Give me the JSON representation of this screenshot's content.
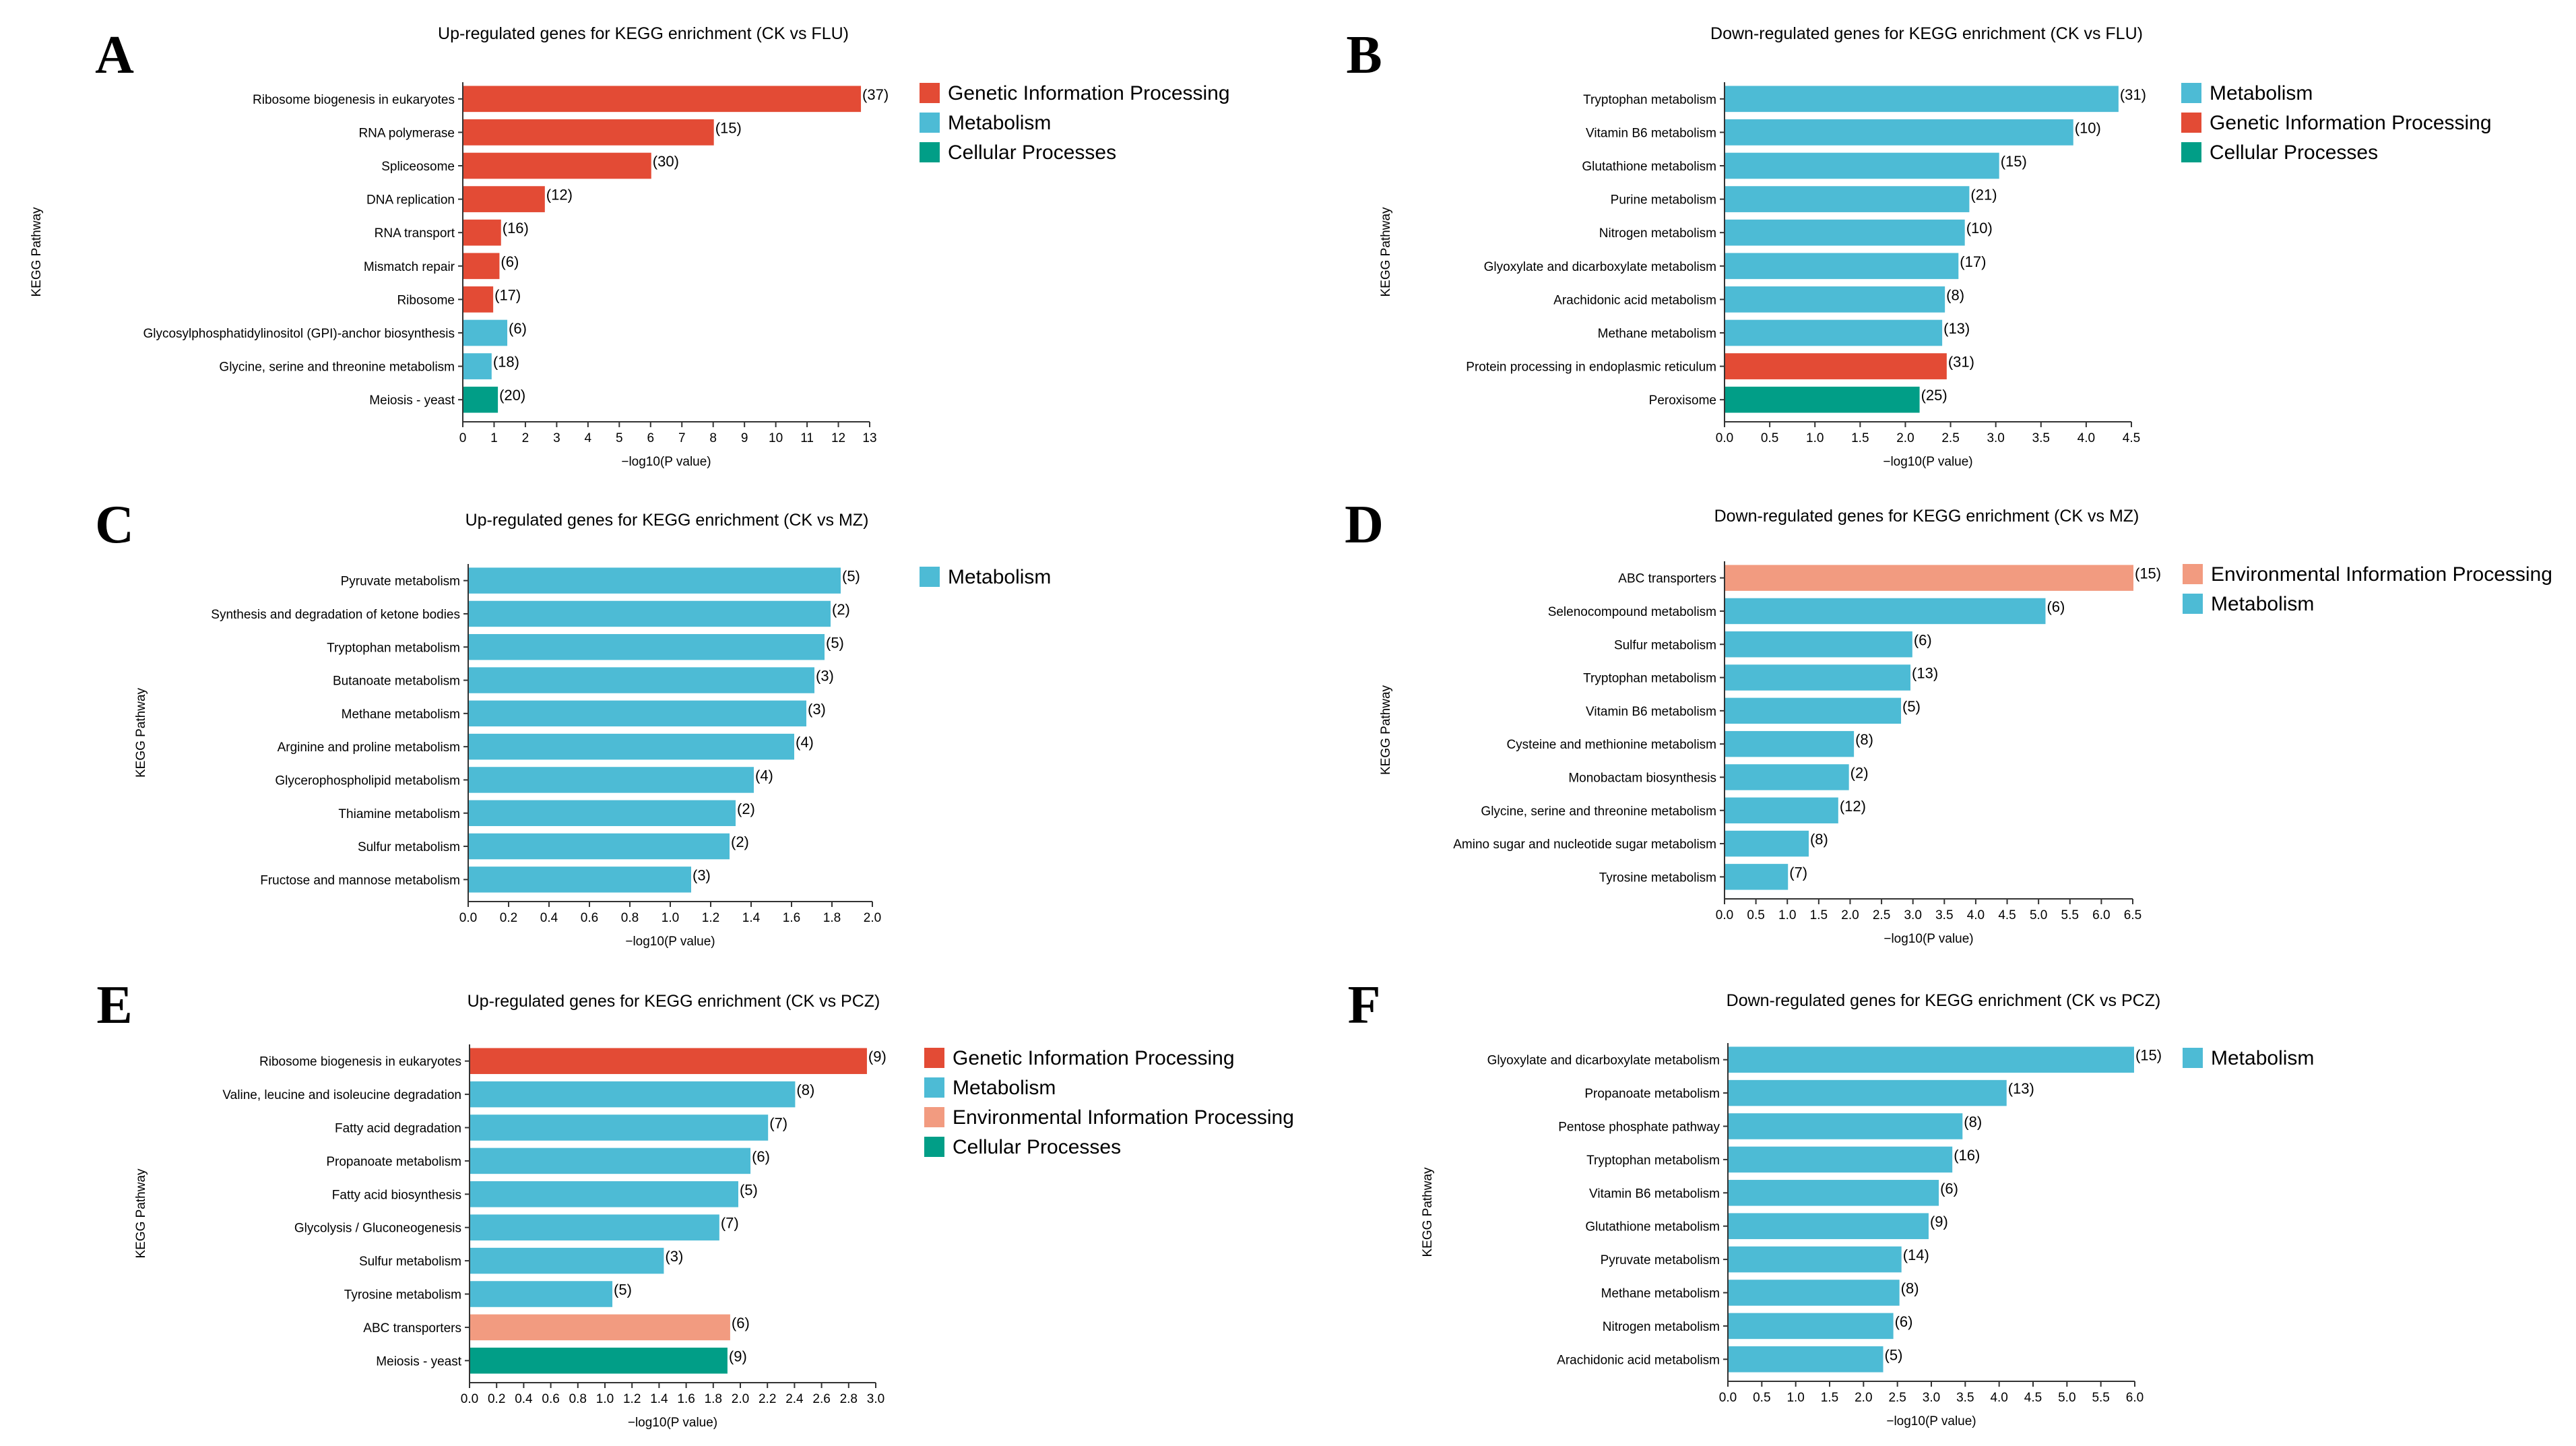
{
  "colors": {
    "Genetic Information Processing": "#e34b35",
    "Metabolism": "#4dbbd5",
    "Cellular Processes": "#019e87",
    "Environmental Information Processing": "#f29b80"
  },
  "chart_data": [
    {
      "type": "bar",
      "orientation": "horizontal",
      "letter": "A",
      "title": "Up-regulated genes for KEGG enrichment (CK vs FLU)",
      "xlabel": "−log10(P value)",
      "ylabel": "KEGG Pathway",
      "xlim": [
        0,
        13
      ],
      "ticks": [
        "0",
        "1",
        "2",
        "3",
        "4",
        "5",
        "6",
        "7",
        "8",
        "9",
        "10",
        "11",
        "12",
        "13"
      ],
      "legend": [
        "Genetic Information Processing",
        "Metabolism",
        "Cellular Processes"
      ],
      "bars": [
        {
          "label": "Ribosome biogenesis in eukaryotes",
          "value": 12.7,
          "count": "(37)",
          "group": "Genetic Information Processing"
        },
        {
          "label": "RNA polymerase",
          "value": 8.0,
          "count": "(15)",
          "group": "Genetic Information Processing"
        },
        {
          "label": "Spliceosome",
          "value": 6.0,
          "count": "(30)",
          "group": "Genetic Information Processing"
        },
        {
          "label": "DNA replication",
          "value": 2.6,
          "count": "(12)",
          "group": "Genetic Information Processing"
        },
        {
          "label": "RNA transport",
          "value": 1.2,
          "count": "(16)",
          "group": "Genetic Information Processing"
        },
        {
          "label": "Mismatch repair",
          "value": 1.15,
          "count": "(6)",
          "group": "Genetic Information Processing"
        },
        {
          "label": "Ribosome",
          "value": 0.95,
          "count": "(17)",
          "group": "Genetic Information Processing"
        },
        {
          "label": "Glycosylphosphatidylinositol (GPI)-anchor biosynthesis",
          "value": 1.4,
          "count": "(6)",
          "group": "Metabolism"
        },
        {
          "label": "Glycine, serine and threonine metabolism",
          "value": 0.9,
          "count": "(18)",
          "group": "Metabolism"
        },
        {
          "label": "Meiosis - yeast",
          "value": 1.1,
          "count": "(20)",
          "group": "Cellular Processes"
        }
      ]
    },
    {
      "type": "bar",
      "orientation": "horizontal",
      "letter": "B",
      "title": "Down-regulated genes for KEGG enrichment (CK vs FLU)",
      "xlabel": "−log10(P value)",
      "ylabel": "KEGG Pathway",
      "xlim": [
        0,
        4.5
      ],
      "ticks": [
        "0.0",
        "0.5",
        "1.0",
        "1.5",
        "2.0",
        "2.5",
        "3.0",
        "3.5",
        "4.0",
        "4.5"
      ],
      "legend": [
        "Metabolism",
        "Genetic Information Processing",
        "Cellular Processes"
      ],
      "bars": [
        {
          "label": "Tryptophan metabolism",
          "value": 4.35,
          "count": "(31)",
          "group": "Metabolism"
        },
        {
          "label": "Vitamin B6 metabolism",
          "value": 3.85,
          "count": "(10)",
          "group": "Metabolism"
        },
        {
          "label": "Glutathione metabolism",
          "value": 3.03,
          "count": "(15)",
          "group": "Metabolism"
        },
        {
          "label": "Purine metabolism",
          "value": 2.7,
          "count": "(21)",
          "group": "Metabolism"
        },
        {
          "label": "Nitrogen metabolism",
          "value": 2.65,
          "count": "(10)",
          "group": "Metabolism"
        },
        {
          "label": "Glyoxylate and dicarboxylate metabolism",
          "value": 2.58,
          "count": "(17)",
          "group": "Metabolism"
        },
        {
          "label": "Arachidonic acid metabolism",
          "value": 2.43,
          "count": "(8)",
          "group": "Metabolism"
        },
        {
          "label": "Methane metabolism",
          "value": 2.4,
          "count": "(13)",
          "group": "Metabolism"
        },
        {
          "label": "Protein processing in endoplasmic reticulum",
          "value": 2.45,
          "count": "(31)",
          "group": "Genetic Information Processing"
        },
        {
          "label": "Peroxisome",
          "value": 2.15,
          "count": "(25)",
          "group": "Cellular Processes"
        }
      ]
    },
    {
      "type": "bar",
      "orientation": "horizontal",
      "letter": "C",
      "title": "Up-regulated genes for KEGG enrichment (CK vs MZ)",
      "xlabel": "−log10(P value)",
      "ylabel": "KEGG Pathway",
      "xlim": [
        0,
        2.0
      ],
      "ticks": [
        "0.0",
        "0.2",
        "0.4",
        "0.6",
        "0.8",
        "1.0",
        "1.2",
        "1.4",
        "1.6",
        "1.8",
        "2.0"
      ],
      "legend": [
        "Metabolism"
      ],
      "bars": [
        {
          "label": "Pyruvate metabolism",
          "value": 1.84,
          "count": "(5)",
          "group": "Metabolism"
        },
        {
          "label": "Synthesis and degradation of ketone bodies",
          "value": 1.79,
          "count": "(2)",
          "group": "Metabolism"
        },
        {
          "label": "Tryptophan metabolism",
          "value": 1.76,
          "count": "(5)",
          "group": "Metabolism"
        },
        {
          "label": "Butanoate metabolism",
          "value": 1.71,
          "count": "(3)",
          "group": "Metabolism"
        },
        {
          "label": "Methane metabolism",
          "value": 1.67,
          "count": "(3)",
          "group": "Metabolism"
        },
        {
          "label": "Arginine and proline metabolism",
          "value": 1.61,
          "count": "(4)",
          "group": "Metabolism"
        },
        {
          "label": "Glycerophospholipid metabolism",
          "value": 1.41,
          "count": "(4)",
          "group": "Metabolism"
        },
        {
          "label": "Thiamine metabolism",
          "value": 1.32,
          "count": "(2)",
          "group": "Metabolism"
        },
        {
          "label": "Sulfur metabolism",
          "value": 1.29,
          "count": "(2)",
          "group": "Metabolism"
        },
        {
          "label": "Fructose and mannose metabolism",
          "value": 1.1,
          "count": "(3)",
          "group": "Metabolism"
        }
      ]
    },
    {
      "type": "bar",
      "orientation": "horizontal",
      "letter": "D",
      "title": "Down-regulated genes for KEGG enrichment (CK vs MZ)",
      "xlabel": "−log10(P value)",
      "ylabel": "KEGG Pathway",
      "xlim": [
        0,
        6.5
      ],
      "ticks": [
        "0.0",
        "0.5",
        "1.0",
        "1.5",
        "2.0",
        "2.5",
        "3.0",
        "3.5",
        "4.0",
        "4.5",
        "5.0",
        "5.5",
        "6.0",
        "6.5"
      ],
      "legend": [
        "Environmental Information Processing",
        "Metabolism"
      ],
      "bars": [
        {
          "label": "ABC transporters",
          "value": 6.5,
          "count": "(15)",
          "group": "Environmental Information Processing"
        },
        {
          "label": "Selenocompound metabolism",
          "value": 5.1,
          "count": "(6)",
          "group": "Metabolism"
        },
        {
          "label": "Sulfur metabolism",
          "value": 2.98,
          "count": "(6)",
          "group": "Metabolism"
        },
        {
          "label": "Tryptophan metabolism",
          "value": 2.95,
          "count": "(13)",
          "group": "Metabolism"
        },
        {
          "label": "Vitamin B6 metabolism",
          "value": 2.8,
          "count": "(5)",
          "group": "Metabolism"
        },
        {
          "label": "Cysteine and methionine metabolism",
          "value": 2.05,
          "count": "(8)",
          "group": "Metabolism"
        },
        {
          "label": "Monobactam biosynthesis",
          "value": 1.97,
          "count": "(2)",
          "group": "Metabolism"
        },
        {
          "label": "Glycine, serine and threonine metabolism",
          "value": 1.8,
          "count": "(12)",
          "group": "Metabolism"
        },
        {
          "label": "Amino sugar and nucleotide sugar metabolism",
          "value": 1.33,
          "count": "(8)",
          "group": "Metabolism"
        },
        {
          "label": "Tyrosine metabolism",
          "value": 1.0,
          "count": "(7)",
          "group": "Metabolism"
        }
      ]
    },
    {
      "type": "bar",
      "orientation": "horizontal",
      "letter": "E",
      "title": "Up-regulated genes for KEGG enrichment (CK vs PCZ)",
      "xlabel": "−log10(P value)",
      "ylabel": "KEGG Pathway",
      "xlim": [
        0,
        3.0
      ],
      "ticks": [
        "0.0",
        "0.2",
        "0.4",
        "0.6",
        "0.8",
        "1.0",
        "1.2",
        "1.4",
        "1.6",
        "1.8",
        "2.0",
        "2.2",
        "2.4",
        "2.6",
        "2.8",
        "3.0"
      ],
      "legend": [
        "Genetic Information Processing",
        "Metabolism",
        "Environmental Information Processing",
        "Cellular Processes"
      ],
      "bars": [
        {
          "label": "Ribosome biogenesis in eukaryotes",
          "value": 2.93,
          "count": "(9)",
          "group": "Genetic Information Processing"
        },
        {
          "label": "Valine, leucine and isoleucine degradation",
          "value": 2.4,
          "count": "(8)",
          "group": "Metabolism"
        },
        {
          "label": "Fatty acid degradation",
          "value": 2.2,
          "count": "(7)",
          "group": "Metabolism"
        },
        {
          "label": "Propanoate metabolism",
          "value": 2.07,
          "count": "(6)",
          "group": "Metabolism"
        },
        {
          "label": "Fatty acid biosynthesis",
          "value": 1.98,
          "count": "(5)",
          "group": "Metabolism"
        },
        {
          "label": "Glycolysis / Gluconeogenesis",
          "value": 1.84,
          "count": "(7)",
          "group": "Metabolism"
        },
        {
          "label": "Sulfur metabolism",
          "value": 1.43,
          "count": "(3)",
          "group": "Metabolism"
        },
        {
          "label": "Tyrosine metabolism",
          "value": 1.05,
          "count": "(5)",
          "group": "Metabolism"
        },
        {
          "label": "ABC transporters",
          "value": 1.92,
          "count": "(6)",
          "group": "Environmental Information Processing"
        },
        {
          "label": "Meiosis - yeast",
          "value": 1.9,
          "count": "(9)",
          "group": "Cellular Processes"
        }
      ]
    },
    {
      "type": "bar",
      "orientation": "horizontal",
      "letter": "F",
      "title": "Down-regulated genes for KEGG enrichment (CK vs PCZ)",
      "xlabel": "−log10(P value)",
      "ylabel": "KEGG Pathway",
      "xlim": [
        0,
        6.0
      ],
      "ticks": [
        "0.0",
        "0.5",
        "1.0",
        "1.5",
        "2.0",
        "2.5",
        "3.0",
        "3.5",
        "4.0",
        "4.5",
        "5.0",
        "5.5",
        "6.0"
      ],
      "legend": [
        "Metabolism"
      ],
      "bars": [
        {
          "label": "Glyoxylate and dicarboxylate metabolism",
          "value": 5.98,
          "count": "(15)",
          "group": "Metabolism"
        },
        {
          "label": "Propanoate metabolism",
          "value": 4.1,
          "count": "(13)",
          "group": "Metabolism"
        },
        {
          "label": "Pentose phosphate pathway",
          "value": 3.45,
          "count": "(8)",
          "group": "Metabolism"
        },
        {
          "label": "Tryptophan metabolism",
          "value": 3.3,
          "count": "(16)",
          "group": "Metabolism"
        },
        {
          "label": "Vitamin B6 metabolism",
          "value": 3.1,
          "count": "(6)",
          "group": "Metabolism"
        },
        {
          "label": "Glutathione metabolism",
          "value": 2.95,
          "count": "(9)",
          "group": "Metabolism"
        },
        {
          "label": "Pyruvate metabolism",
          "value": 2.55,
          "count": "(14)",
          "group": "Metabolism"
        },
        {
          "label": "Methane metabolism",
          "value": 2.52,
          "count": "(8)",
          "group": "Metabolism"
        },
        {
          "label": "Nitrogen metabolism",
          "value": 2.43,
          "count": "(6)",
          "group": "Metabolism"
        },
        {
          "label": "Arachidonic acid metabolism",
          "value": 2.28,
          "count": "(5)",
          "group": "Metabolism"
        }
      ]
    }
  ]
}
